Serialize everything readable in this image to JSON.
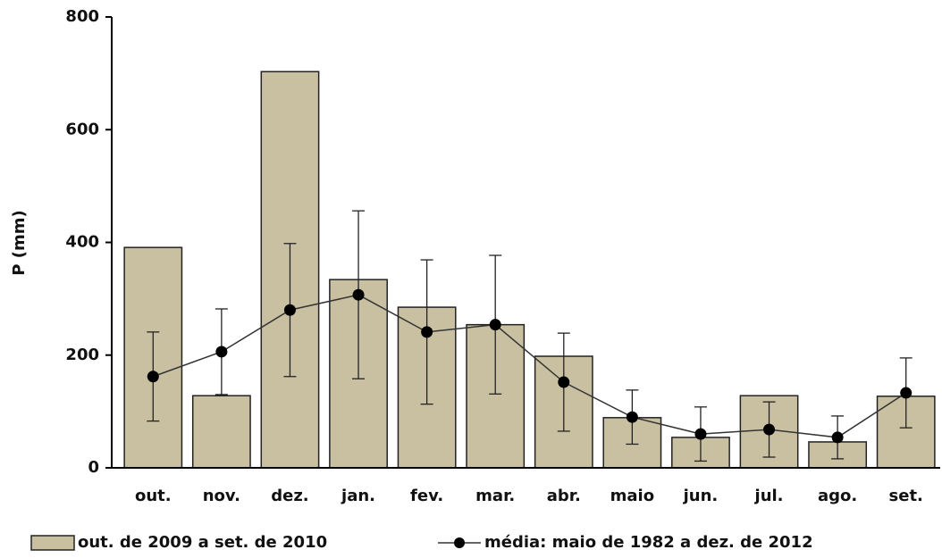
{
  "chart_data": {
    "type": "bar",
    "y_label": "P (mm)",
    "categories": [
      "out.",
      "nov.",
      "dez.",
      "jan.",
      "fev.",
      "mar.",
      "abr.",
      "maio",
      "jun.",
      "jul.",
      "ago.",
      "set."
    ],
    "series": [
      {
        "name": "out. de 2009 a set. de 2010",
        "type": "bar",
        "color": "#c9c0a2",
        "values": [
          391,
          128,
          703,
          334,
          285,
          254,
          198,
          89,
          54,
          128,
          46,
          127
        ]
      },
      {
        "name": "média: maio de 1982 a dez. de 2012",
        "type": "line",
        "color": "#000000",
        "values": [
          162,
          206,
          280,
          307,
          241,
          254,
          152,
          90,
          60,
          68,
          54,
          133
        ],
        "errors": [
          79,
          76,
          118,
          149,
          128,
          123,
          87,
          48,
          48,
          49,
          38,
          62
        ]
      }
    ],
    "ylim": [
      0,
      800
    ],
    "yticks": [
      0,
      200,
      400,
      600,
      800
    ],
    "grid": false
  }
}
